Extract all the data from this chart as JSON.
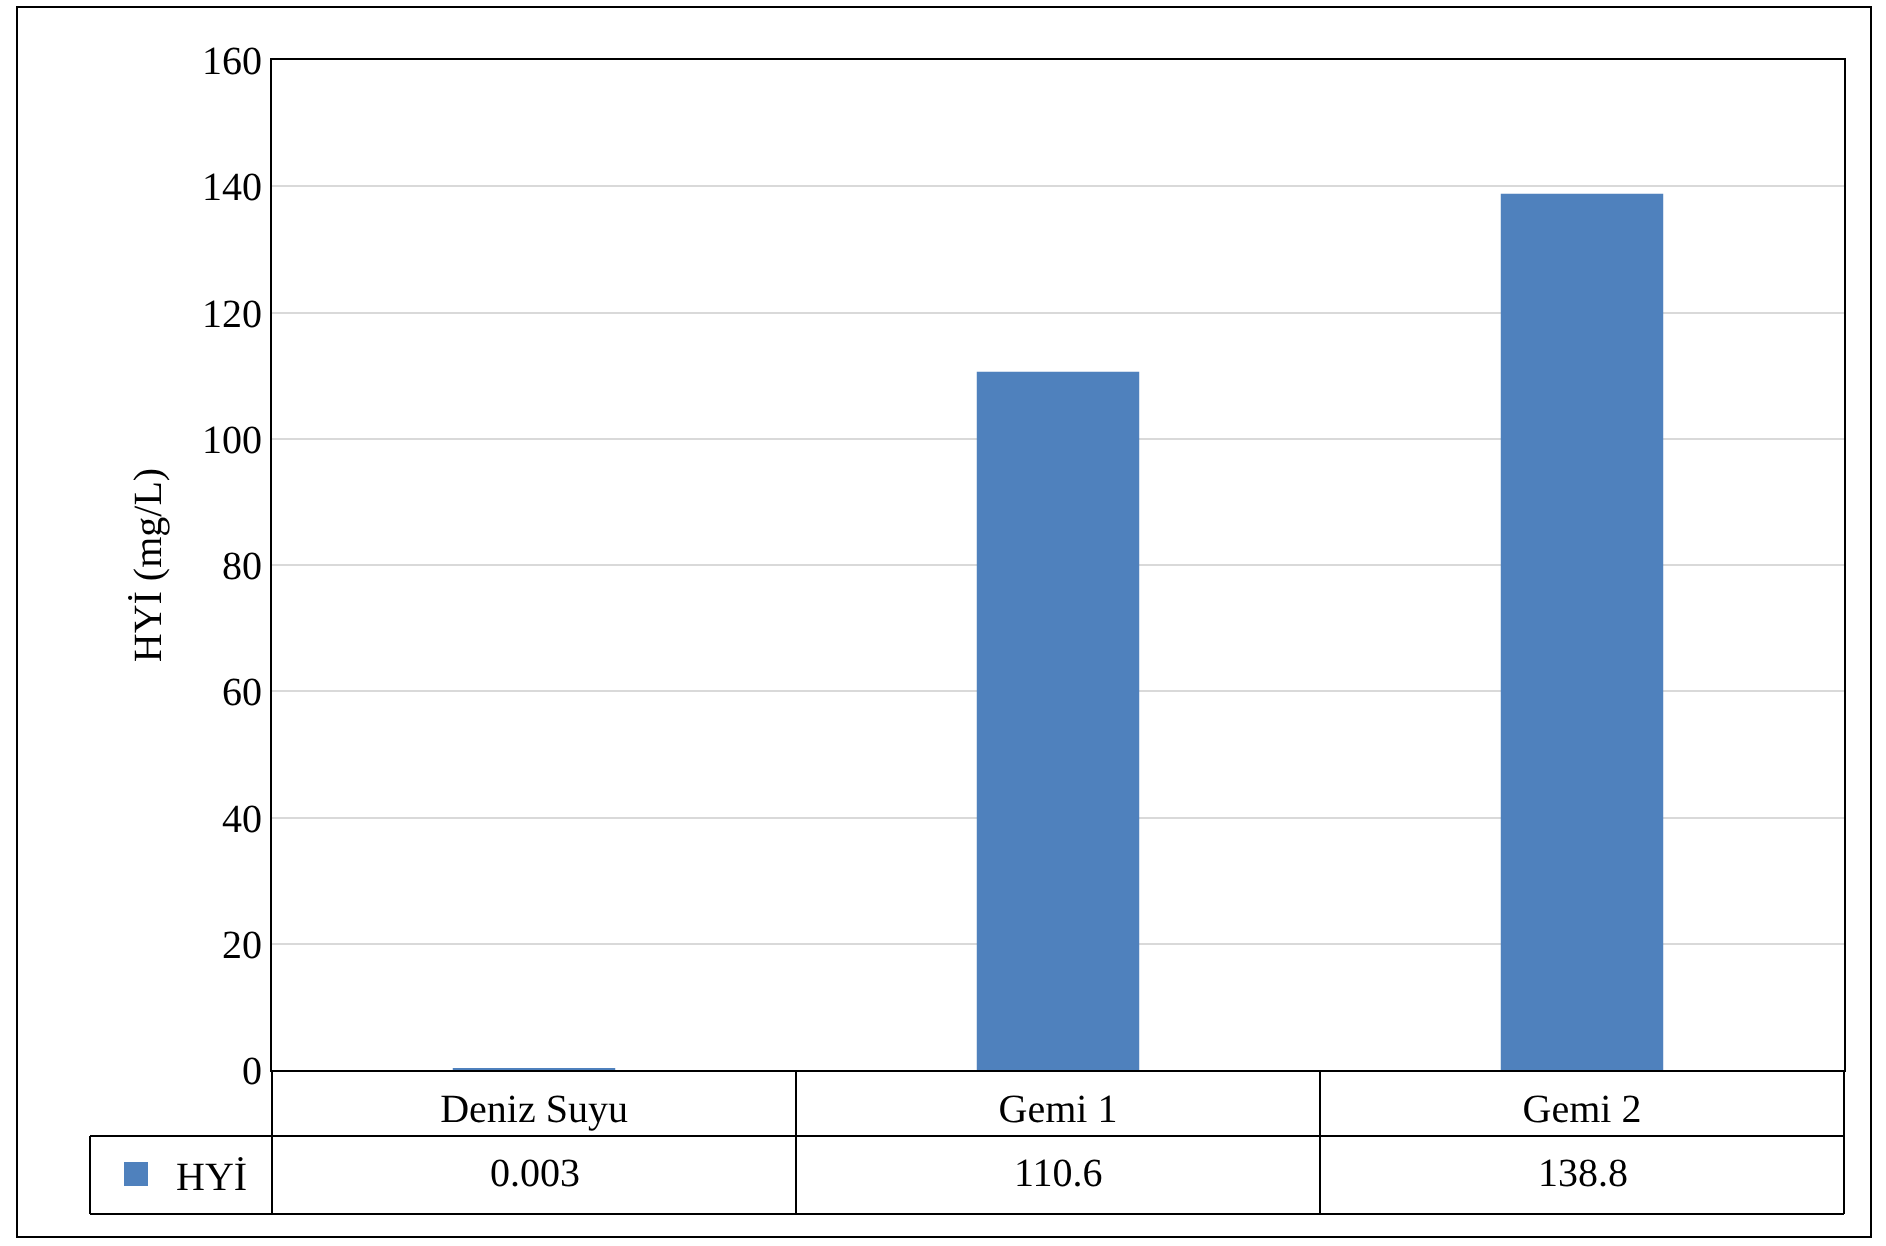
{
  "chart_data": {
    "type": "bar",
    "ylabel": "HYİ (mg/L)",
    "categories": [
      "Deniz Suyu",
      "Gemi 1",
      "Gemi 2"
    ],
    "series": [
      {
        "name": "HYİ",
        "color": "#4f81bd",
        "values": [
          0.003,
          110.6,
          138.8
        ]
      }
    ],
    "ylim": [
      0,
      160
    ],
    "yticks": [
      0,
      20,
      40,
      60,
      80,
      100,
      120,
      140,
      160
    ],
    "grid": "y",
    "data_labels": true,
    "legend": "bottom left"
  }
}
